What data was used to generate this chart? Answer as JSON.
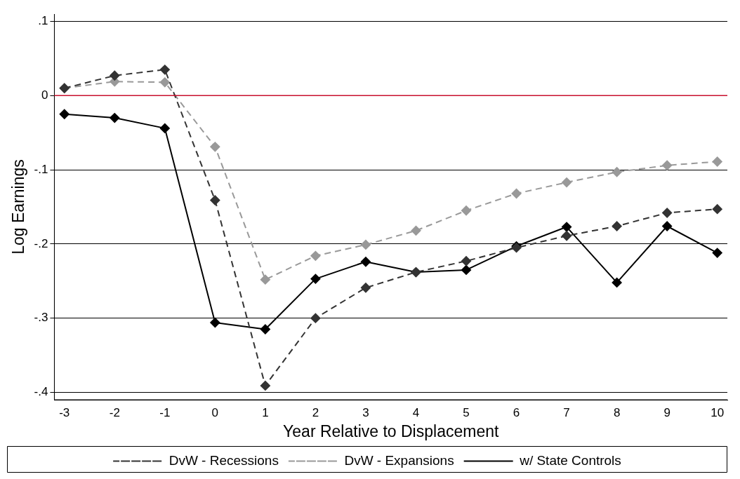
{
  "chart_data": {
    "type": "line",
    "xlabel": "Year Relative to Displacement",
    "ylabel": "Log Earnings",
    "x": [
      -3,
      -2,
      -1,
      0,
      1,
      2,
      3,
      4,
      5,
      6,
      7,
      8,
      9,
      10
    ],
    "series": [
      {
        "name": "DvW - Recessions",
        "color": "#333333",
        "line_style": "dashed",
        "values": [
          0.01,
          0.027,
          0.035,
          -0.141,
          -0.391,
          -0.3,
          -0.259,
          -0.238,
          -0.223,
          -0.205,
          -0.189,
          -0.176,
          -0.158,
          -0.153
        ]
      },
      {
        "name": "DvW - Expansions",
        "color": "#999999",
        "line_style": "dashed",
        "values": [
          0.01,
          0.019,
          0.018,
          -0.069,
          -0.248,
          -0.216,
          -0.201,
          -0.182,
          -0.155,
          -0.132,
          -0.117,
          -0.103,
          -0.094,
          -0.089
        ]
      },
      {
        "name": "w/ State Controls",
        "color": "#000000",
        "line_style": "solid",
        "values": [
          -0.025,
          -0.03,
          -0.044,
          -0.306,
          -0.315,
          -0.247,
          -0.224,
          -0.238,
          -0.235,
          -0.203,
          -0.177,
          -0.252,
          -0.176,
          -0.212
        ]
      }
    ],
    "xlim": [
      -3.2,
      10.2
    ],
    "xticks": [
      -3,
      -2,
      -1,
      0,
      1,
      2,
      3,
      4,
      5,
      6,
      7,
      8,
      9,
      10
    ],
    "ylim": [
      -0.41,
      0.11
    ],
    "yticks": [
      {
        "value": 0.1,
        "label": ".1"
      },
      {
        "value": 0,
        "label": "0"
      },
      {
        "value": -0.1,
        "label": "-.1"
      },
      {
        "value": -0.2,
        "label": "-.2"
      },
      {
        "value": -0.3,
        "label": "-.3"
      },
      {
        "value": -0.4,
        "label": "-.4"
      }
    ],
    "ref_lines": [
      {
        "axis": "y",
        "value": 0,
        "color": "#c8102e"
      }
    ],
    "grid": "y",
    "legend": "bottom",
    "marker": "diamond"
  }
}
